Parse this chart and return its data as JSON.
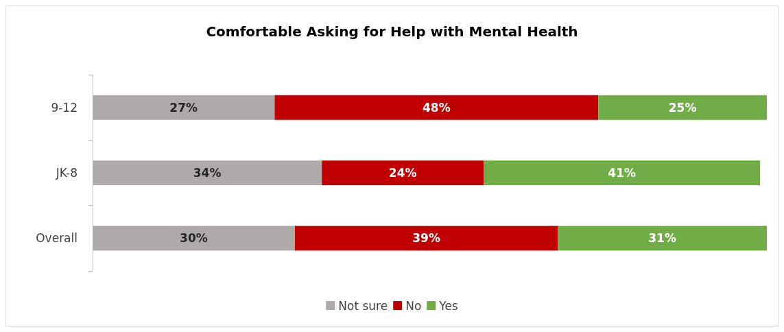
{
  "chart_data": {
    "type": "bar",
    "orientation": "horizontal",
    "stacked": true,
    "title": "Comfortable Asking for Help with Mental Health",
    "categories": [
      "9-12",
      "JK-8",
      "Overall"
    ],
    "series": [
      {
        "name": "Not sure",
        "color": "#aeaaaa",
        "values": [
          27,
          34,
          30
        ],
        "value_labels": [
          "27%",
          "34%",
          "30%"
        ]
      },
      {
        "name": "No",
        "color": "#c00000",
        "values": [
          48,
          24,
          39
        ],
        "value_labels": [
          "48%",
          "24%",
          "39%"
        ]
      },
      {
        "name": "Yes",
        "color": "#70ad47",
        "values": [
          25,
          41,
          31
        ],
        "value_labels": [
          "25%",
          "41%",
          "31%"
        ]
      }
    ],
    "legend": "bottom"
  }
}
